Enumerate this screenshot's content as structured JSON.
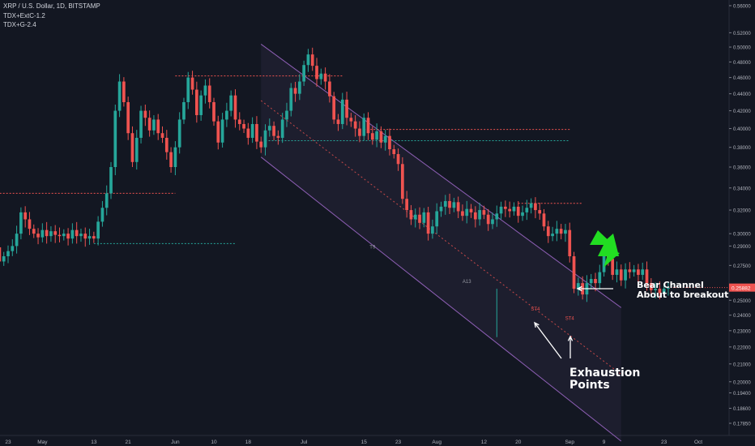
{
  "header": {
    "symbol_line": "XRP / U.S. Dollar, 1D, BITSTAMP",
    "indicator_1": "TDX+ExtC-1.2",
    "indicator_2": "TDX+G-2.4"
  },
  "annotations": {
    "channel_label_1": "Bear Channel",
    "channel_label_2": "About to breakout",
    "exhaustion_1": "Exhaustion",
    "exhaustion_2": "Points",
    "marker_a13": "A13",
    "marker_st": "ST4",
    "marker_st2": "ST4",
    "marker_t9": "T9"
  },
  "colors": {
    "background": "#131722",
    "up": "#26a69a",
    "down": "#ef5350",
    "channel": "#8e5fb5",
    "annotation": "#ffffff",
    "price_tag": "#ef5350",
    "arrow_green": "#22dd22"
  },
  "chart_data": {
    "type": "candlestick",
    "title": "XRP / U.S. Dollar, 1D, BITSTAMP",
    "y_scale": "log",
    "ylim": [
      0.17,
      0.57
    ],
    "y_ticks": [
      "0.56000",
      "0.52000",
      "0.50000",
      "0.48000",
      "0.46000",
      "0.44000",
      "0.42000",
      "0.40000",
      "0.38000",
      "0.36000",
      "0.34000",
      "0.32000",
      "0.30000",
      "0.29000",
      "0.27500",
      "0.26000",
      "0.25000",
      "0.24000",
      "0.23000",
      "0.22000",
      "0.21000",
      "0.20000",
      "0.19400",
      "0.18600",
      "0.17850"
    ],
    "x_ticks": [
      "23",
      "May",
      "13",
      "21",
      "Jun",
      "10",
      "18",
      "Jul",
      "15",
      "23",
      "Aug",
      "12",
      "20",
      "Sep",
      "9",
      "23",
      "Oct"
    ],
    "last_price": "0.25882",
    "range_start": "2019-04-15",
    "closes": [
      0.327,
      0.33,
      0.318,
      0.305,
      0.3,
      0.289,
      0.278,
      0.282,
      0.286,
      0.29,
      0.3,
      0.318,
      0.312,
      0.304,
      0.3,
      0.297,
      0.303,
      0.298,
      0.302,
      0.299,
      0.298,
      0.3,
      0.296,
      0.303,
      0.298,
      0.3,
      0.296,
      0.298,
      0.296,
      0.31,
      0.322,
      0.335,
      0.36,
      0.42,
      0.455,
      0.43,
      0.395,
      0.365,
      0.39,
      0.42,
      0.412,
      0.398,
      0.41,
      0.395,
      0.39,
      0.375,
      0.36,
      0.38,
      0.41,
      0.43,
      0.46,
      0.445,
      0.415,
      0.438,
      0.45,
      0.43,
      0.408,
      0.385,
      0.41,
      0.42,
      0.438,
      0.41,
      0.405,
      0.4,
      0.39,
      0.405,
      0.386,
      0.38,
      0.398,
      0.403,
      0.392,
      0.39,
      0.41,
      0.42,
      0.447,
      0.44,
      0.455,
      0.476,
      0.49,
      0.475,
      0.458,
      0.465,
      0.455,
      0.437,
      0.41,
      0.405,
      0.433,
      0.412,
      0.408,
      0.4,
      0.392,
      0.412,
      0.395,
      0.388,
      0.397,
      0.385,
      0.392,
      0.378,
      0.373,
      0.363,
      0.33,
      0.32,
      0.312,
      0.316,
      0.309,
      0.318,
      0.3,
      0.306,
      0.319,
      0.323,
      0.328,
      0.322,
      0.327,
      0.319,
      0.315,
      0.321,
      0.318,
      0.312,
      0.32,
      0.316,
      0.308,
      0.312,
      0.317,
      0.323,
      0.321,
      0.319,
      0.323,
      0.315,
      0.318,
      0.322,
      0.326,
      0.32,
      0.317,
      0.306,
      0.298,
      0.3,
      0.304,
      0.3,
      0.303,
      0.282,
      0.258,
      0.262,
      0.254,
      0.262,
      0.265,
      0.262,
      0.27,
      0.282,
      0.28,
      0.268,
      0.272,
      0.264,
      0.272,
      0.27,
      0.272,
      0.268,
      0.272,
      0.262,
      0.257,
      0.258,
      0.255,
      0.258,
      0.2588
    ],
    "tdx_series": [
      {
        "name": "TDX+ExtC-1.2"
      },
      {
        "name": "TDX+G-2.4"
      }
    ],
    "channel": {
      "upper": [
        [
          0.504,
          "2019-06-21"
        ],
        [
          0.245,
          "2019-09-13"
        ]
      ],
      "lower": [
        [
          0.37,
          "2019-06-21"
        ],
        [
          0.17,
          "2019-09-13"
        ]
      ]
    },
    "levels": [
      {
        "value": 0.335,
        "color": "#ef5350",
        "from": "2019-04-15",
        "to": "2019-06-01"
      },
      {
        "value": 0.292,
        "color": "#26a69a",
        "from": "2019-05-13",
        "to": "2019-06-15"
      },
      {
        "value": 0.462,
        "color": "#ef5350",
        "from": "2019-06-01",
        "to": "2019-07-10"
      },
      {
        "value": 0.399,
        "color": "#ef5350",
        "from": "2019-07-15",
        "to": "2019-09-01"
      },
      {
        "value": 0.387,
        "color": "#26a69a",
        "from": "2019-06-22",
        "to": "2019-09-01"
      },
      {
        "value": 0.326,
        "color": "#ef5350",
        "from": "2019-08-20",
        "to": "2019-09-04"
      }
    ]
  }
}
